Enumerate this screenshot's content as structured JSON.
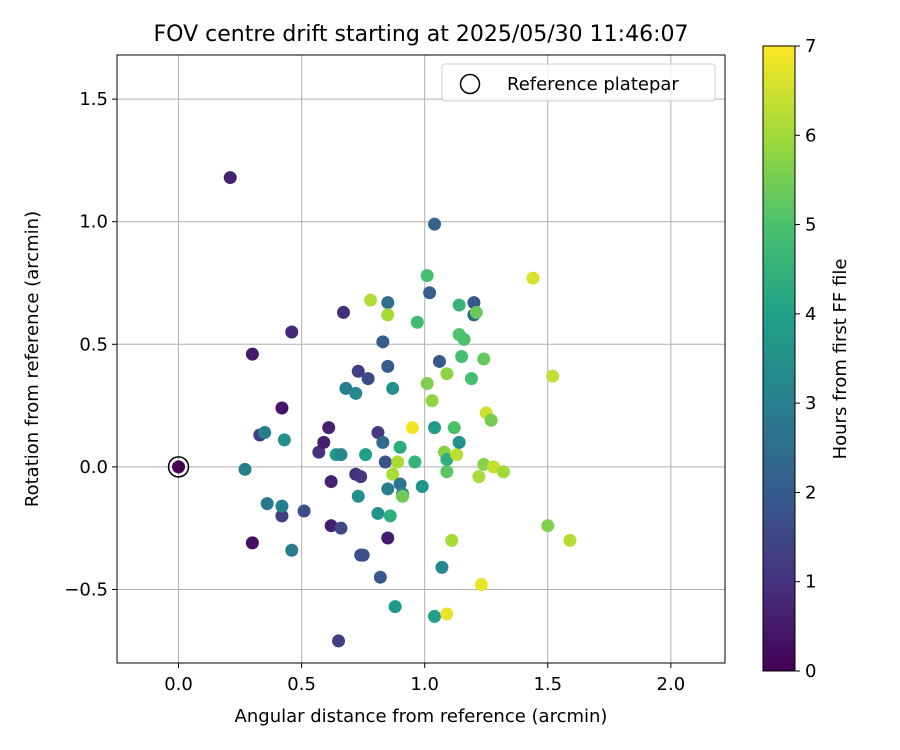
{
  "chart_data": {
    "type": "scatter",
    "title": "FOV centre drift starting at 2025/05/30 11:46:07",
    "xlabel": "Angular distance from reference (arcmin)",
    "ylabel": "Rotation from reference (arcmin)",
    "xlim": [
      -0.25,
      2.22
    ],
    "ylim": [
      -0.8,
      1.68
    ],
    "xticks": [
      0.0,
      0.5,
      1.0,
      1.5,
      2.0
    ],
    "xtick_labels": [
      "0.0",
      "0.5",
      "1.0",
      "1.5",
      "2.0"
    ],
    "yticks": [
      -0.5,
      0.0,
      0.5,
      1.0,
      1.5
    ],
    "ytick_labels": [
      "−0.5",
      "0.0",
      "0.5",
      "1.0",
      "1.5"
    ],
    "grid": true,
    "legend": {
      "placement": "top-right",
      "entries": [
        "Reference platepar"
      ]
    },
    "reference_point": {
      "name": "Reference platepar",
      "x": 0.0,
      "y": 0.0
    },
    "colorbar": {
      "label": "Hours from first FF file",
      "colormap": "viridis",
      "range": [
        0,
        7
      ],
      "ticks": [
        0,
        1,
        2,
        3,
        4,
        5,
        6,
        7
      ],
      "tick_labels": [
        "0",
        "1",
        "2",
        "3",
        "4",
        "5",
        "6",
        "7"
      ]
    },
    "points": [
      {
        "x": 0.0,
        "y": 0.0,
        "h": 0.0
      },
      {
        "x": 0.21,
        "y": 1.18,
        "h": 0.7
      },
      {
        "x": 0.3,
        "y": 0.46,
        "h": 0.5
      },
      {
        "x": 0.42,
        "y": 0.24,
        "h": 0.4
      },
      {
        "x": 0.46,
        "y": 0.55,
        "h": 0.8
      },
      {
        "x": 0.3,
        "y": -0.31,
        "h": 0.3
      },
      {
        "x": 0.33,
        "y": 0.13,
        "h": 1.3
      },
      {
        "x": 0.35,
        "y": 0.14,
        "h": 3.0
      },
      {
        "x": 0.27,
        "y": -0.01,
        "h": 3.0
      },
      {
        "x": 0.36,
        "y": -0.15,
        "h": 2.8
      },
      {
        "x": 0.42,
        "y": -0.2,
        "h": 1.3
      },
      {
        "x": 0.42,
        "y": -0.16,
        "h": 3.0
      },
      {
        "x": 0.43,
        "y": 0.11,
        "h": 3.5
      },
      {
        "x": 0.46,
        "y": -0.34,
        "h": 2.9
      },
      {
        "x": 0.51,
        "y": -0.18,
        "h": 1.7
      },
      {
        "x": 0.57,
        "y": 0.06,
        "h": 1.0
      },
      {
        "x": 0.59,
        "y": 0.1,
        "h": 0.6
      },
      {
        "x": 0.61,
        "y": 0.16,
        "h": 0.7
      },
      {
        "x": 0.62,
        "y": -0.06,
        "h": 0.7
      },
      {
        "x": 0.62,
        "y": -0.24,
        "h": 0.6
      },
      {
        "x": 0.64,
        "y": 0.05,
        "h": 3.9
      },
      {
        "x": 0.65,
        "y": -0.71,
        "h": 1.3
      },
      {
        "x": 0.66,
        "y": -0.25,
        "h": 1.6
      },
      {
        "x": 0.66,
        "y": 0.05,
        "h": 3.3
      },
      {
        "x": 0.67,
        "y": 0.63,
        "h": 0.9
      },
      {
        "x": 0.68,
        "y": 0.32,
        "h": 3.0
      },
      {
        "x": 0.72,
        "y": 0.3,
        "h": 3.3
      },
      {
        "x": 0.72,
        "y": -0.03,
        "h": 0.9
      },
      {
        "x": 0.73,
        "y": 0.39,
        "h": 1.3
      },
      {
        "x": 0.73,
        "y": -0.12,
        "h": 3.5
      },
      {
        "x": 0.74,
        "y": -0.04,
        "h": 1.1
      },
      {
        "x": 0.74,
        "y": -0.36,
        "h": 1.7
      },
      {
        "x": 0.75,
        "y": -0.36,
        "h": 1.7
      },
      {
        "x": 0.76,
        "y": 0.05,
        "h": 4.0
      },
      {
        "x": 0.77,
        "y": 0.36,
        "h": 1.6
      },
      {
        "x": 0.78,
        "y": 0.68,
        "h": 6.2
      },
      {
        "x": 0.81,
        "y": 0.14,
        "h": 1.2
      },
      {
        "x": 0.81,
        "y": -0.19,
        "h": 3.6
      },
      {
        "x": 0.82,
        "y": -0.45,
        "h": 1.9
      },
      {
        "x": 0.83,
        "y": 0.1,
        "h": 2.4
      },
      {
        "x": 0.83,
        "y": 0.51,
        "h": 2.0
      },
      {
        "x": 0.84,
        "y": 0.02,
        "h": 1.8
      },
      {
        "x": 0.85,
        "y": 0.67,
        "h": 2.6
      },
      {
        "x": 0.85,
        "y": 0.62,
        "h": 6.1
      },
      {
        "x": 0.85,
        "y": 0.41,
        "h": 2.0
      },
      {
        "x": 0.85,
        "y": -0.09,
        "h": 3.0
      },
      {
        "x": 0.85,
        "y": -0.29,
        "h": 0.6
      },
      {
        "x": 0.86,
        "y": -0.2,
        "h": 4.4
      },
      {
        "x": 0.87,
        "y": -0.03,
        "h": 6.1
      },
      {
        "x": 0.87,
        "y": 0.32,
        "h": 3.5
      },
      {
        "x": 0.88,
        "y": -0.57,
        "h": 3.7
      },
      {
        "x": 0.89,
        "y": 0.02,
        "h": 6.1
      },
      {
        "x": 0.9,
        "y": 0.08,
        "h": 4.3
      },
      {
        "x": 0.9,
        "y": -0.07,
        "h": 2.7
      },
      {
        "x": 0.91,
        "y": -0.11,
        "h": 3.1
      },
      {
        "x": 0.91,
        "y": -0.12,
        "h": 5.4
      },
      {
        "x": 0.95,
        "y": 0.16,
        "h": 6.9
      },
      {
        "x": 0.96,
        "y": 0.02,
        "h": 4.5
      },
      {
        "x": 0.97,
        "y": 0.59,
        "h": 4.8
      },
      {
        "x": 0.99,
        "y": -0.08,
        "h": 3.7
      },
      {
        "x": 1.01,
        "y": 0.78,
        "h": 4.9
      },
      {
        "x": 1.01,
        "y": 0.34,
        "h": 5.6
      },
      {
        "x": 1.02,
        "y": 0.71,
        "h": 2.1
      },
      {
        "x": 1.03,
        "y": 0.27,
        "h": 5.8
      },
      {
        "x": 1.04,
        "y": 0.99,
        "h": 2.2
      },
      {
        "x": 1.04,
        "y": 0.16,
        "h": 3.8
      },
      {
        "x": 1.04,
        "y": -0.61,
        "h": 3.9
      },
      {
        "x": 1.06,
        "y": 0.43,
        "h": 1.9
      },
      {
        "x": 1.07,
        "y": -0.41,
        "h": 3.2
      },
      {
        "x": 1.08,
        "y": 0.06,
        "h": 5.7
      },
      {
        "x": 1.09,
        "y": 0.38,
        "h": 5.8
      },
      {
        "x": 1.09,
        "y": 0.03,
        "h": 4.4
      },
      {
        "x": 1.09,
        "y": -0.02,
        "h": 5.2
      },
      {
        "x": 1.09,
        "y": -0.6,
        "h": 6.8
      },
      {
        "x": 1.11,
        "y": -0.3,
        "h": 6.1
      },
      {
        "x": 1.12,
        "y": 0.16,
        "h": 5.0
      },
      {
        "x": 1.13,
        "y": 0.05,
        "h": 6.3
      },
      {
        "x": 1.14,
        "y": 0.66,
        "h": 4.6
      },
      {
        "x": 1.14,
        "y": 0.54,
        "h": 5.1
      },
      {
        "x": 1.14,
        "y": 0.1,
        "h": 3.5
      },
      {
        "x": 1.15,
        "y": 0.45,
        "h": 4.9
      },
      {
        "x": 1.16,
        "y": 0.52,
        "h": 5.0
      },
      {
        "x": 1.19,
        "y": 0.36,
        "h": 4.9
      },
      {
        "x": 1.2,
        "y": 0.67,
        "h": 1.9
      },
      {
        "x": 1.2,
        "y": 0.62,
        "h": 2.3
      },
      {
        "x": 1.21,
        "y": 0.63,
        "h": 5.4
      },
      {
        "x": 1.22,
        "y": -0.04,
        "h": 6.1
      },
      {
        "x": 1.23,
        "y": -0.48,
        "h": 6.8
      },
      {
        "x": 1.24,
        "y": 0.44,
        "h": 5.3
      },
      {
        "x": 1.24,
        "y": 0.01,
        "h": 5.7
      },
      {
        "x": 1.25,
        "y": 0.22,
        "h": 6.5
      },
      {
        "x": 1.27,
        "y": 0.19,
        "h": 5.5
      },
      {
        "x": 1.28,
        "y": 0.0,
        "h": 6.4
      },
      {
        "x": 1.32,
        "y": -0.02,
        "h": 6.0
      },
      {
        "x": 1.44,
        "y": 0.77,
        "h": 6.6
      },
      {
        "x": 1.5,
        "y": -0.24,
        "h": 5.6
      },
      {
        "x": 1.52,
        "y": 0.37,
        "h": 6.4
      },
      {
        "x": 1.59,
        "y": -0.3,
        "h": 6.2
      }
    ]
  }
}
